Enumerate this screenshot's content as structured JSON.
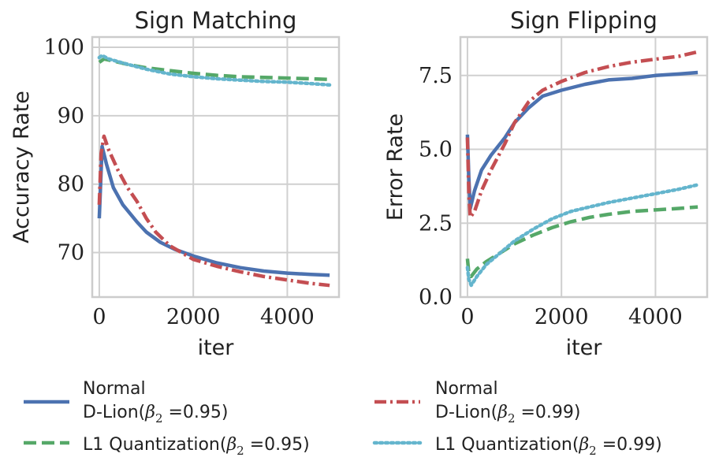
{
  "chart_data": [
    {
      "type": "line",
      "title": "Sign Matching",
      "xlabel": "iter",
      "ylabel": "Accuracy Rate",
      "xlim": [
        -150,
        5100
      ],
      "ylim": [
        63.5,
        101.5
      ],
      "xticks": [
        "0",
        "2000",
        "4000"
      ],
      "xtick_values": [
        0,
        2000,
        4000
      ],
      "yticks": [
        "70",
        "80",
        "90",
        "100"
      ],
      "ytick_values": [
        70,
        80,
        90,
        100
      ],
      "grid": true,
      "series": [
        {
          "name": "Normal D-Lion(β2 =0.95)",
          "style": "solid",
          "color": "#4C72B0",
          "x": [
            0,
            60,
            150,
            300,
            500,
            800,
            1000,
            1300,
            1600,
            2000,
            2500,
            3000,
            3500,
            4000,
            4500,
            4900
          ],
          "y": [
            75.0,
            85.5,
            83.0,
            79.5,
            77.0,
            74.5,
            73.0,
            71.5,
            70.5,
            69.5,
            68.5,
            67.8,
            67.3,
            67.0,
            66.8,
            66.7
          ]
        },
        {
          "name": "Normal D-Lion(β2 =0.99)",
          "style": "dashdot",
          "color": "#C44E52",
          "x": [
            0,
            40,
            100,
            200,
            400,
            600,
            800,
            1000,
            1200,
            1500,
            1800,
            2000,
            2500,
            3000,
            3500,
            4000,
            4500,
            4900
          ],
          "y": [
            77.0,
            84.5,
            87.0,
            85.0,
            82.0,
            79.5,
            77.5,
            75.0,
            73.0,
            71.0,
            69.8,
            69.0,
            68.0,
            67.2,
            66.5,
            66.0,
            65.5,
            65.2
          ]
        },
        {
          "name": "L1 Quantization(β2 =0.95)",
          "style": "dashed",
          "color": "#55A868",
          "x": [
            0,
            100,
            300,
            600,
            1000,
            1500,
            2000,
            2500,
            3000,
            3500,
            4000,
            4500,
            4900
          ],
          "y": [
            97.8,
            98.3,
            98.0,
            97.5,
            97.0,
            96.6,
            96.2,
            95.9,
            95.7,
            95.6,
            95.5,
            95.4,
            95.3
          ]
        },
        {
          "name": "L1 Quantization(β2 =0.99)",
          "style": "dotted",
          "color": "#64B5CD",
          "x": [
            0,
            60,
            200,
            500,
            1000,
            1500,
            2000,
            2500,
            3000,
            3500,
            4000,
            4500,
            4900
          ],
          "y": [
            98.5,
            98.8,
            98.3,
            97.7,
            96.8,
            96.1,
            95.7,
            95.4,
            95.2,
            95.0,
            94.9,
            94.7,
            94.5
          ]
        }
      ]
    },
    {
      "type": "line",
      "title": "Sign Flipping",
      "xlabel": "iter",
      "ylabel": "Error Rate",
      "xlim": [
        -150,
        5100
      ],
      "ylim": [
        0,
        8.8
      ],
      "xticks": [
        "0",
        "2000",
        "4000"
      ],
      "xtick_values": [
        0,
        2000,
        4000
      ],
      "yticks": [
        "0.0",
        "2.5",
        "5.0",
        "7.5"
      ],
      "ytick_values": [
        0,
        2.5,
        5.0,
        7.5
      ],
      "grid": true,
      "series": [
        {
          "name": "Normal D-Lion(β2 =0.95)",
          "style": "solid",
          "color": "#4C72B0",
          "x": [
            0,
            30,
            60,
            150,
            300,
            500,
            800,
            1000,
            1300,
            1600,
            2000,
            2500,
            3000,
            3500,
            4000,
            4500,
            4900
          ],
          "y": [
            5.5,
            4.0,
            3.0,
            3.6,
            4.3,
            4.8,
            5.4,
            5.9,
            6.4,
            6.8,
            7.0,
            7.2,
            7.35,
            7.4,
            7.5,
            7.55,
            7.6
          ]
        },
        {
          "name": "Normal D-Lion(β2 =0.99)",
          "style": "dashdot",
          "color": "#C44E52",
          "x": [
            0,
            30,
            60,
            150,
            300,
            500,
            800,
            1000,
            1300,
            1600,
            2000,
            2500,
            3000,
            3500,
            4000,
            4500,
            4900
          ],
          "y": [
            5.4,
            3.5,
            2.7,
            2.9,
            3.6,
            4.3,
            5.2,
            5.9,
            6.6,
            7.0,
            7.3,
            7.6,
            7.8,
            7.95,
            8.05,
            8.15,
            8.3
          ]
        },
        {
          "name": "L1 Quantization(β2 =0.95)",
          "style": "dashed",
          "color": "#55A868",
          "x": [
            0,
            30,
            80,
            200,
            400,
            700,
            1000,
            1400,
            1800,
            2200,
            2600,
            3000,
            3500,
            4000,
            4500,
            4900
          ],
          "y": [
            1.3,
            0.8,
            0.7,
            0.95,
            1.2,
            1.5,
            1.8,
            2.1,
            2.35,
            2.55,
            2.7,
            2.8,
            2.9,
            2.95,
            3.0,
            3.05
          ]
        },
        {
          "name": "L1 Quantization(β2 =0.99)",
          "style": "dotted",
          "color": "#64B5CD",
          "x": [
            0,
            30,
            80,
            200,
            400,
            700,
            1000,
            1400,
            1800,
            2200,
            2600,
            3000,
            3500,
            4000,
            4500,
            4900
          ],
          "y": [
            1.0,
            0.6,
            0.4,
            0.7,
            1.1,
            1.5,
            1.9,
            2.3,
            2.65,
            2.9,
            3.05,
            3.2,
            3.35,
            3.5,
            3.65,
            3.8
          ]
        }
      ]
    }
  ],
  "legend": {
    "placement": "bottom",
    "entries": [
      {
        "line1": "Normal",
        "line2": "D-Lion(",
        "beta": "β",
        "sub": "2",
        "eq": " =0.95)"
      },
      {
        "line1": "Normal",
        "line2": "D-Lion(",
        "beta": "β",
        "sub": "2",
        "eq": " =0.99)"
      },
      {
        "line1": "L1 Quantization(",
        "beta": "β",
        "sub": "2",
        "eq": " =0.95)"
      },
      {
        "line1": "L1 Quantization(",
        "beta": "β",
        "sub": "2",
        "eq": " =0.99)"
      }
    ],
    "colors": [
      "#4C72B0",
      "#C44E52",
      "#55A868",
      "#64B5CD"
    ],
    "styles": [
      "solid",
      "dashdot",
      "dashed",
      "dotted"
    ]
  }
}
